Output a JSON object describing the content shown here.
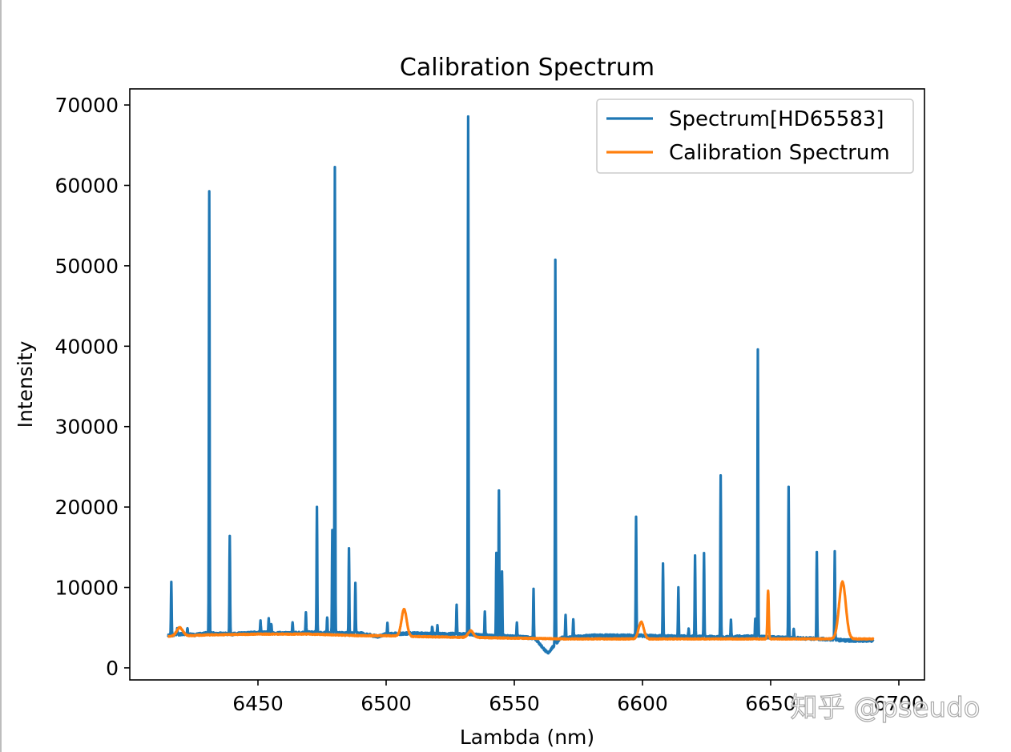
{
  "chart_data": {
    "type": "line",
    "title": "Calibration Spectrum",
    "xlabel": "Lambda (nm)",
    "ylabel": "Intensity",
    "xlim": [
      6400,
      6710
    ],
    "ylim": [
      -1500,
      72000
    ],
    "xticks": [
      6450,
      6500,
      6550,
      6600,
      6650,
      6700
    ],
    "xtick_labels": [
      "6450",
      "6500",
      "6550",
      "6600",
      "6650",
      "6700"
    ],
    "yticks": [
      0,
      10000,
      20000,
      30000,
      40000,
      50000,
      60000,
      70000
    ],
    "ytick_labels": [
      "0",
      "10000",
      "20000",
      "30000",
      "40000",
      "50000",
      "60000",
      "70000"
    ],
    "grid": false,
    "legend_position": "top-right",
    "series": [
      {
        "name": "Spectrum[HD65583]",
        "color": "#1f77b4",
        "baseline": [
          [
            6415,
            4000
          ],
          [
            6420,
            4200
          ],
          [
            6425,
            4100
          ],
          [
            6430,
            4300
          ],
          [
            6440,
            4200
          ],
          [
            6450,
            4400
          ],
          [
            6460,
            4300
          ],
          [
            6470,
            4400
          ],
          [
            6480,
            4300
          ],
          [
            6490,
            4300
          ],
          [
            6497,
            3900
          ],
          [
            6500,
            4200
          ],
          [
            6510,
            4300
          ],
          [
            6520,
            4200
          ],
          [
            6530,
            4200
          ],
          [
            6540,
            4000
          ],
          [
            6550,
            3900
          ],
          [
            6558,
            3700
          ],
          [
            6563,
            1800
          ],
          [
            6568,
            3700
          ],
          [
            6580,
            4000
          ],
          [
            6590,
            4000
          ],
          [
            6600,
            4000
          ],
          [
            6610,
            3900
          ],
          [
            6620,
            3900
          ],
          [
            6630,
            3800
          ],
          [
            6640,
            3900
          ],
          [
            6650,
            3800
          ],
          [
            6660,
            3700
          ],
          [
            6670,
            3600
          ],
          [
            6680,
            3400
          ],
          [
            6690,
            3400
          ]
        ],
        "peaks": [
          [
            6416.2,
            10600
          ],
          [
            6418.5,
            5000
          ],
          [
            6422.5,
            5000
          ],
          [
            6431.0,
            59200
          ],
          [
            6439.0,
            16500
          ],
          [
            6451.0,
            5800
          ],
          [
            6454.2,
            6300
          ],
          [
            6455.2,
            5400
          ],
          [
            6463.5,
            5700
          ],
          [
            6468.7,
            6800
          ],
          [
            6473.0,
            19900
          ],
          [
            6477.0,
            6400
          ],
          [
            6479.0,
            17000
          ],
          [
            6480.0,
            62200
          ],
          [
            6485.5,
            15000
          ],
          [
            6488.0,
            10500
          ],
          [
            6500.5,
            5600
          ],
          [
            6518.0,
            5200
          ],
          [
            6520.0,
            5200
          ],
          [
            6527.5,
            7800
          ],
          [
            6532.0,
            68600
          ],
          [
            6538.5,
            7000
          ],
          [
            6543.0,
            14400
          ],
          [
            6544.0,
            22200
          ],
          [
            6545.2,
            11900
          ],
          [
            6551.0,
            5600
          ],
          [
            6557.5,
            9800
          ],
          [
            6566.0,
            50800
          ],
          [
            6570.0,
            6700
          ],
          [
            6573.0,
            6100
          ],
          [
            6597.5,
            18700
          ],
          [
            6608.0,
            12900
          ],
          [
            6614.0,
            10100
          ],
          [
            6618.0,
            4800
          ],
          [
            6620.5,
            13900
          ],
          [
            6624.0,
            14300
          ],
          [
            6630.5,
            23900
          ],
          [
            6634.5,
            5900
          ],
          [
            6644.0,
            6000
          ],
          [
            6645.0,
            39500
          ],
          [
            6657.0,
            22400
          ],
          [
            6659.0,
            4900
          ],
          [
            6668.0,
            14500
          ],
          [
            6675.0,
            14500
          ]
        ]
      },
      {
        "name": "Calibration Spectrum",
        "color": "#ff7f0e",
        "baseline": [
          [
            6415,
            3900
          ],
          [
            6430,
            4100
          ],
          [
            6450,
            4200
          ],
          [
            6470,
            4200
          ],
          [
            6490,
            4000
          ],
          [
            6500,
            4000
          ],
          [
            6510,
            3900
          ],
          [
            6530,
            3800
          ],
          [
            6550,
            3700
          ],
          [
            6570,
            3600
          ],
          [
            6590,
            3600
          ],
          [
            6600,
            3600
          ],
          [
            6620,
            3600
          ],
          [
            6640,
            3600
          ],
          [
            6660,
            3600
          ],
          [
            6680,
            3600
          ],
          [
            6690,
            3600
          ]
        ],
        "peaks": [
          [
            6419.5,
            5000,
            1.2
          ],
          [
            6507.0,
            7300,
            1.0
          ],
          [
            6533.0,
            4600,
            1.0
          ],
          [
            6599.5,
            5700,
            1.0
          ],
          [
            6649.0,
            9600,
            0.25
          ],
          [
            6678.0,
            10700,
            1.3
          ]
        ]
      }
    ]
  },
  "watermark": {
    "text": "知乎 @pseudo",
    "color": "#9a9a9a"
  }
}
